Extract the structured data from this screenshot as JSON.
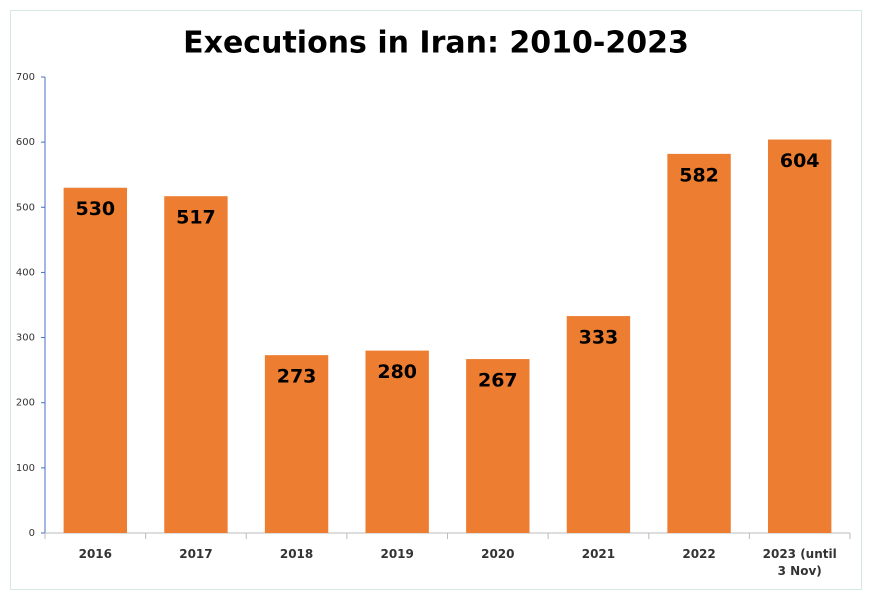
{
  "chart_data": {
    "type": "bar",
    "title": "Executions in Iran: 2010-2023",
    "categories": [
      "2016",
      "2017",
      "2018",
      "2019",
      "2020",
      "2021",
      "2022",
      "2023 (until 3 Nov)"
    ],
    "values": [
      530,
      517,
      273,
      280,
      267,
      333,
      582,
      604
    ],
    "color": "#ed7d31",
    "ylim": [
      0,
      700
    ],
    "yticks": [
      0,
      100,
      200,
      300,
      400,
      500,
      600,
      700
    ],
    "grid": false,
    "data_labels": true
  }
}
